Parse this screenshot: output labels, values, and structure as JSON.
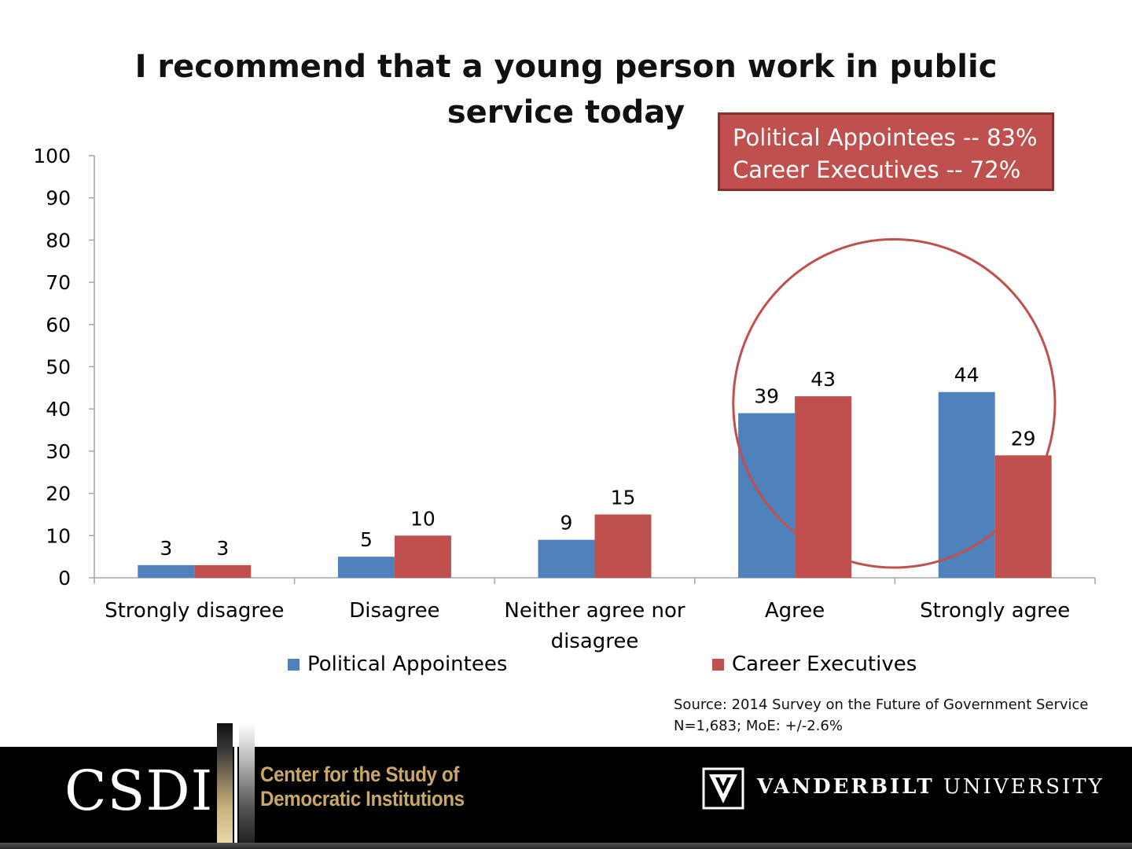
{
  "callout": {
    "line1": "Political Appointees -- 83%",
    "line2": "Career Executives -- 72%"
  },
  "source": {
    "line1": "Source: 2014 Survey on the Future of Government Service",
    "line2": "N=1,683; MoE: +/-2.6%"
  },
  "footer": {
    "csdi_logo": "CSDI",
    "csdi_name_line1": "Center for the Study of",
    "csdi_name_line2": "Democratic Institutions",
    "university_bold": "VANDERBILT",
    "university_rest": " UNIVERSITY"
  },
  "colors": {
    "political": "#4f81bd",
    "career": "#c0504d",
    "callout_bg": "#c0504d",
    "ellipse": "#c0504d",
    "axis": "#a6a6a6",
    "footer_bg": "#000000",
    "csdi_gold": "#c9a866"
  },
  "chart_data": {
    "type": "bar",
    "title_lines": [
      "I recommend that a young person work in public",
      "service today"
    ],
    "categories": [
      [
        "Strongly disagree"
      ],
      [
        "Disagree"
      ],
      [
        "Neither agree nor",
        "disagree"
      ],
      [
        "Agree"
      ],
      [
        "Strongly agree"
      ]
    ],
    "series": [
      {
        "name": "Political Appointees",
        "values": [
          3,
          5,
          9,
          39,
          44
        ],
        "color": "#4f81bd"
      },
      {
        "name": "Career Executives",
        "values": [
          3,
          10,
          15,
          43,
          29
        ],
        "color": "#c0504d"
      }
    ],
    "ylim": [
      0,
      100
    ],
    "yticks": [
      0,
      10,
      20,
      30,
      40,
      50,
      60,
      70,
      80,
      90,
      100
    ],
    "data_labels": true,
    "grid": false,
    "legend_position": "bottom",
    "annotation": "ellipse around Agree and Strongly agree"
  }
}
